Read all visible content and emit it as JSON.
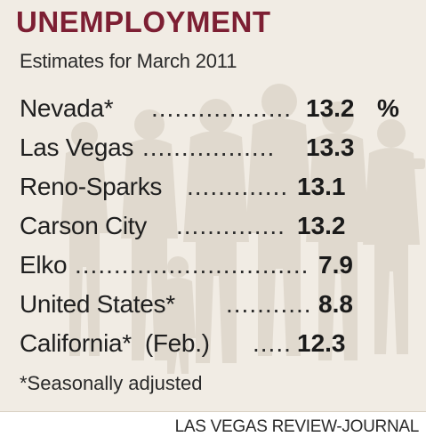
{
  "header": {
    "title": "UNEMPLOYMENT",
    "subtitle": "Estimates for March 2011"
  },
  "rows": [
    {
      "label": "Nevada*",
      "dots": "..................",
      "value": "13.2",
      "unit": "%"
    },
    {
      "label": "Las Vegas",
      "dots": ".................",
      "value": "13.3"
    },
    {
      "label": "Reno-Sparks",
      "dots": ".............",
      "value": "13.1"
    },
    {
      "label": "Carson City",
      "dots": "..............",
      "value": "13.2"
    },
    {
      "label": "Elko",
      "dots": "..............................",
      "value": "7.9"
    },
    {
      "label": "United States*",
      "dots": "...........",
      "value": "8.8"
    },
    {
      "label": "California*  (Feb.)",
      "dots": ".....",
      "value": "12.3"
    }
  ],
  "footnote": "*Seasonally adjusted",
  "credit": "LAS VEGAS REVIEW-JOURNAL",
  "colors": {
    "title": "#7d1f33",
    "panel_background": "#f1ece4",
    "silhouette": "#e0d9ce"
  }
}
